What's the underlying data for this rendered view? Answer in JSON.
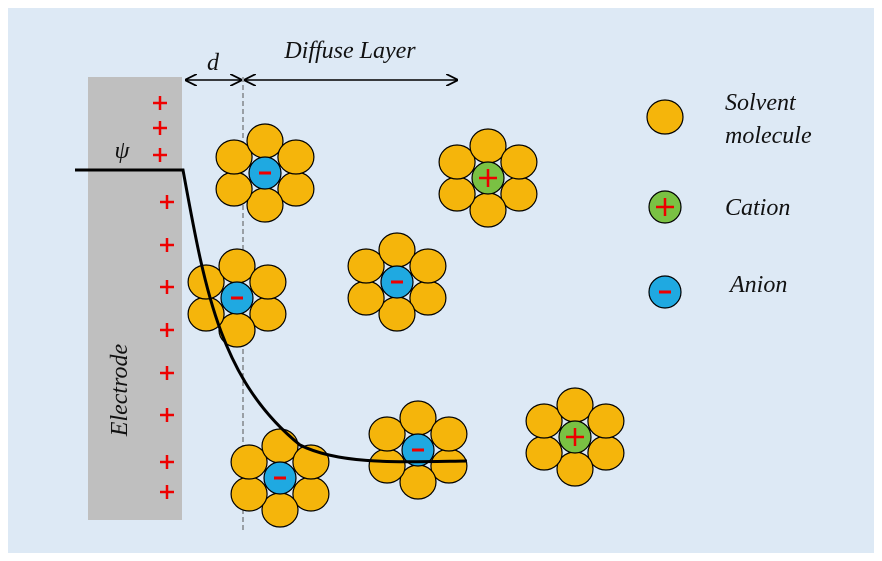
{
  "labels": {
    "d": "d",
    "diffuse_layer": "Diffuse Layer",
    "psi": "ψ",
    "electrode": "Electrode"
  },
  "legend": {
    "solvent": [
      "Solvent",
      "molecule"
    ],
    "cation": "Cation",
    "anion": "Anion"
  }
}
